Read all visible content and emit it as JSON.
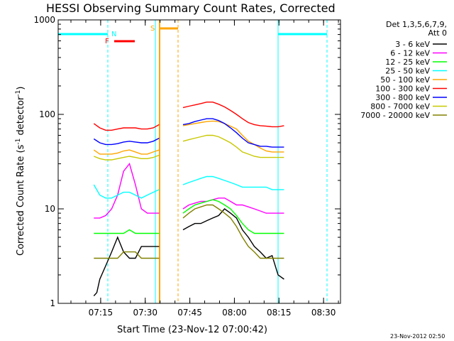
{
  "chart_data": {
    "type": "line",
    "title": "HESSI Observing Summary Count Rates, Corrected",
    "xlabel": "Start Time (23-Nov-12 07:00:42)",
    "ylabel_main": "Corrected Count Rate (s",
    "ylabel_sup1": "-1",
    "ylabel_mid": " detector",
    "ylabel_sup2": "-1",
    "ylabel_end": ")",
    "timestamp": "23-Nov-2012 02:50",
    "y_scale": "log",
    "ylim": [
      1,
      1000
    ],
    "xlim_minutes": [
      0,
      95
    ],
    "x_ticks": [
      "07:15",
      "07:30",
      "07:45",
      "08:00",
      "08:15",
      "08:30"
    ],
    "x_tick_minutes": [
      14.3,
      29.3,
      44.3,
      59.3,
      74.3,
      89.3
    ],
    "y_ticks": [
      "1",
      "10",
      "100",
      "1000"
    ],
    "y_tick_values": [
      1,
      10,
      100,
      1000
    ],
    "legend_header": [
      "Det 1,3,5,6,7,9,",
      "Att 0"
    ],
    "legend_position": "right",
    "data_gaps_minutes": [
      [
        34.5,
        41.5
      ],
      [
        76.5,
        95
      ]
    ],
    "series": [
      {
        "name": "3 - 6 keV",
        "color": "#000000",
        "x": [
          12,
          13,
          14,
          16,
          18,
          20,
          22,
          24,
          26,
          28,
          30,
          32,
          34,
          42,
          44,
          46,
          48,
          50,
          52,
          54,
          56,
          58,
          60,
          62,
          64,
          66,
          68,
          70,
          72,
          74,
          76
        ],
        "y": [
          1.2,
          1.3,
          1.8,
          2.5,
          3.5,
          5,
          3.5,
          3,
          3,
          4,
          4,
          4,
          4,
          6,
          6.5,
          7,
          7,
          7.5,
          8,
          8.5,
          10,
          9,
          8,
          6,
          5,
          4,
          3.5,
          3,
          3.2,
          2,
          1.8
        ]
      },
      {
        "name": "6 - 12 keV",
        "color": "#ff00ff",
        "x": [
          12,
          14,
          16,
          18,
          20,
          22,
          24,
          26,
          28,
          30,
          32,
          34,
          42,
          44,
          46,
          48,
          50,
          52,
          54,
          56,
          58,
          60,
          62,
          64,
          66,
          68,
          70,
          72,
          74,
          76
        ],
        "y": [
          8,
          8,
          8.5,
          10,
          14,
          25,
          30,
          18,
          10,
          9,
          9,
          9,
          10,
          11,
          11.5,
          12,
          12,
          12.5,
          13,
          13,
          12,
          11,
          11,
          10.5,
          10,
          9.5,
          9,
          9,
          9,
          9
        ]
      },
      {
        "name": "12 - 25 keV",
        "color": "#00ff00",
        "x": [
          12,
          14,
          16,
          18,
          20,
          22,
          24,
          26,
          28,
          30,
          32,
          34,
          42,
          44,
          46,
          48,
          50,
          52,
          54,
          56,
          58,
          60,
          62,
          64,
          66,
          68,
          70,
          72,
          74,
          76
        ],
        "y": [
          5.5,
          5.5,
          5.5,
          5.5,
          5.5,
          5.5,
          6,
          5.5,
          5.5,
          5.5,
          5.5,
          5.5,
          9,
          10,
          11,
          11.5,
          12,
          12.5,
          12,
          11,
          10,
          8.5,
          7,
          6,
          5.5,
          5.5,
          5.5,
          5.5,
          5.5,
          5.5
        ]
      },
      {
        "name": "25 - 50 keV",
        "color": "#00ffff",
        "x": [
          12,
          14,
          16,
          18,
          20,
          22,
          24,
          26,
          28,
          30,
          32,
          34,
          42,
          44,
          46,
          48,
          50,
          52,
          54,
          56,
          58,
          60,
          62,
          64,
          66,
          68,
          70,
          72,
          74,
          76
        ],
        "y": [
          18,
          14,
          13,
          13,
          14,
          15,
          15,
          14,
          13,
          14,
          15,
          16,
          18,
          19,
          20,
          21,
          22,
          22,
          21,
          20,
          19,
          18,
          17,
          17,
          17,
          17,
          17,
          16,
          16,
          16
        ]
      },
      {
        "name": "50 - 100 keV",
        "color": "#ffa500",
        "x": [
          12,
          14,
          16,
          18,
          20,
          22,
          24,
          26,
          28,
          30,
          32,
          34,
          42,
          44,
          46,
          48,
          50,
          52,
          54,
          56,
          58,
          60,
          62,
          64,
          66,
          68,
          70,
          72,
          74,
          76
        ],
        "y": [
          42,
          38,
          38,
          38,
          39,
          41,
          42,
          40,
          38,
          38,
          40,
          42,
          76,
          78,
          80,
          82,
          84,
          85,
          84,
          80,
          75,
          70,
          60,
          52,
          48,
          44,
          41,
          40,
          40,
          40
        ]
      },
      {
        "name": "100 - 300 keV",
        "color": "#ff0000",
        "x": [
          12,
          14,
          16,
          18,
          20,
          22,
          24,
          26,
          28,
          30,
          32,
          34,
          42,
          44,
          46,
          48,
          50,
          52,
          54,
          56,
          58,
          60,
          62,
          64,
          66,
          68,
          70,
          72,
          74,
          76
        ],
        "y": [
          80,
          72,
          68,
          68,
          70,
          72,
          72,
          72,
          70,
          70,
          72,
          78,
          118,
          122,
          126,
          130,
          135,
          135,
          128,
          120,
          110,
          100,
          90,
          82,
          78,
          76,
          75,
          74,
          74,
          76
        ]
      },
      {
        "name": "300 - 800 keV",
        "color": "#0000ff",
        "x": [
          12,
          14,
          16,
          18,
          20,
          22,
          24,
          26,
          28,
          30,
          32,
          34,
          42,
          44,
          46,
          48,
          50,
          52,
          54,
          56,
          58,
          60,
          62,
          64,
          66,
          68,
          70,
          72,
          74,
          76
        ],
        "y": [
          55,
          50,
          48,
          48,
          49,
          51,
          52,
          51,
          50,
          50,
          52,
          56,
          78,
          80,
          84,
          87,
          90,
          90,
          86,
          80,
          72,
          64,
          56,
          50,
          48,
          46,
          46,
          45,
          45,
          45
        ]
      },
      {
        "name": "800 - 7000 keV",
        "color": "#c8c800",
        "x": [
          12,
          14,
          16,
          18,
          20,
          22,
          24,
          26,
          28,
          30,
          32,
          34,
          42,
          44,
          46,
          48,
          50,
          52,
          54,
          56,
          58,
          60,
          62,
          64,
          66,
          68,
          70,
          72,
          74,
          76
        ],
        "y": [
          36,
          34,
          33,
          33,
          34,
          35,
          36,
          35,
          34,
          34,
          35,
          37,
          52,
          54,
          56,
          58,
          60,
          60,
          58,
          54,
          50,
          45,
          40,
          38,
          36,
          35,
          35,
          35,
          35,
          35
        ]
      },
      {
        "name": "7000 - 20000 keV",
        "color": "#808000",
        "x": [
          12,
          14,
          16,
          18,
          20,
          22,
          24,
          26,
          28,
          30,
          32,
          34,
          42,
          44,
          46,
          48,
          50,
          52,
          54,
          56,
          58,
          60,
          62,
          64,
          66,
          68,
          70,
          72,
          74,
          76
        ],
        "y": [
          3,
          3,
          3,
          3,
          3,
          3.5,
          3.5,
          3.5,
          3,
          3,
          3,
          3,
          8,
          9,
          10,
          10.5,
          11,
          11,
          10,
          9,
          8,
          6.5,
          5,
          4,
          3.5,
          3,
          3,
          3,
          3,
          3
        ]
      }
    ],
    "annotations": [
      {
        "label": "N",
        "color": "#00ffff"
      },
      {
        "label": "F",
        "color": "#ff0000"
      },
      {
        "label": "S",
        "color": "#ffa500"
      }
    ]
  }
}
